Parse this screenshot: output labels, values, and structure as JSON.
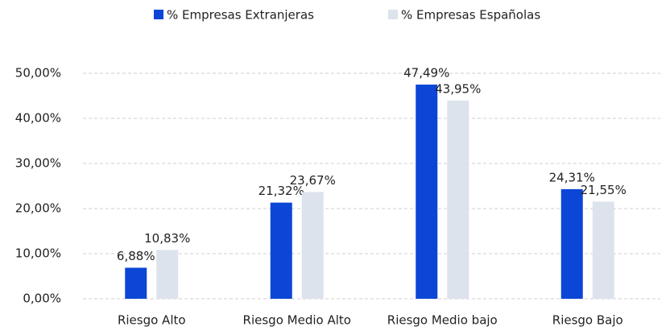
{
  "chart_data": {
    "type": "bar",
    "categories": [
      "Riesgo Alto",
      "Riesgo Medio Alto",
      "Riesgo Medio bajo",
      "Riesgo Bajo"
    ],
    "series": [
      {
        "name": "% Empresas Extranjeras",
        "color": "#0b46d6",
        "values": [
          6.88,
          21.32,
          47.49,
          24.31
        ],
        "value_labels": [
          "6,88%",
          "21,32%",
          "47,49%",
          "24,31%"
        ]
      },
      {
        "name": "% Empresas Españolas",
        "color": "#dde3ec",
        "values": [
          10.83,
          23.67,
          43.95,
          21.55
        ],
        "value_labels": [
          "10,83%",
          "23,67%",
          "43,95%",
          "21,55%"
        ]
      }
    ],
    "ylim": [
      0,
      50
    ],
    "yticks": [
      {
        "value": 0,
        "label": "0,00%"
      },
      {
        "value": 10,
        "label": "10,00%"
      },
      {
        "value": 20,
        "label": "20,00%"
      },
      {
        "value": 30,
        "label": "30,00%"
      },
      {
        "value": 40,
        "label": "40,00%"
      },
      {
        "value": 50,
        "label": "50,00%"
      }
    ],
    "grid": true,
    "legend": "top"
  }
}
